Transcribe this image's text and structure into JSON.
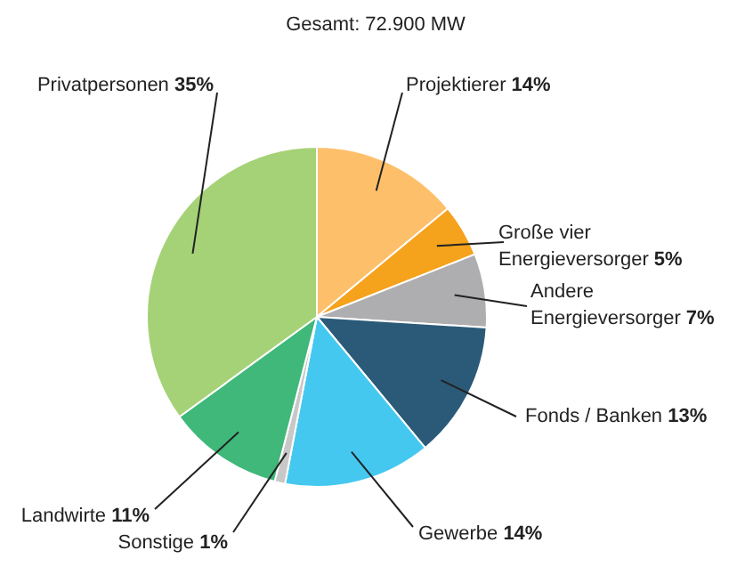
{
  "chart_data": {
    "type": "pie",
    "title": "Gesamt: 72.900 MW",
    "categories": [
      "Projektierer",
      "Große vier Energieversorger",
      "Andere Energieversorger",
      "Fonds / Banken",
      "Gewerbe",
      "Sonstige",
      "Landwirte",
      "Privatpersonen"
    ],
    "values": [
      14,
      5,
      7,
      13,
      14,
      1,
      11,
      35
    ],
    "value_labels": [
      "14%",
      "5%",
      "7%",
      "13%",
      "14%",
      "1%",
      "11%",
      "35%"
    ],
    "colors": [
      "#fdbf6a",
      "#f5a21d",
      "#aeaeb0",
      "#2b5a78",
      "#45c8f0",
      "#c8c8c8",
      "#3fb87a",
      "#a5d277"
    ],
    "legend": false
  }
}
